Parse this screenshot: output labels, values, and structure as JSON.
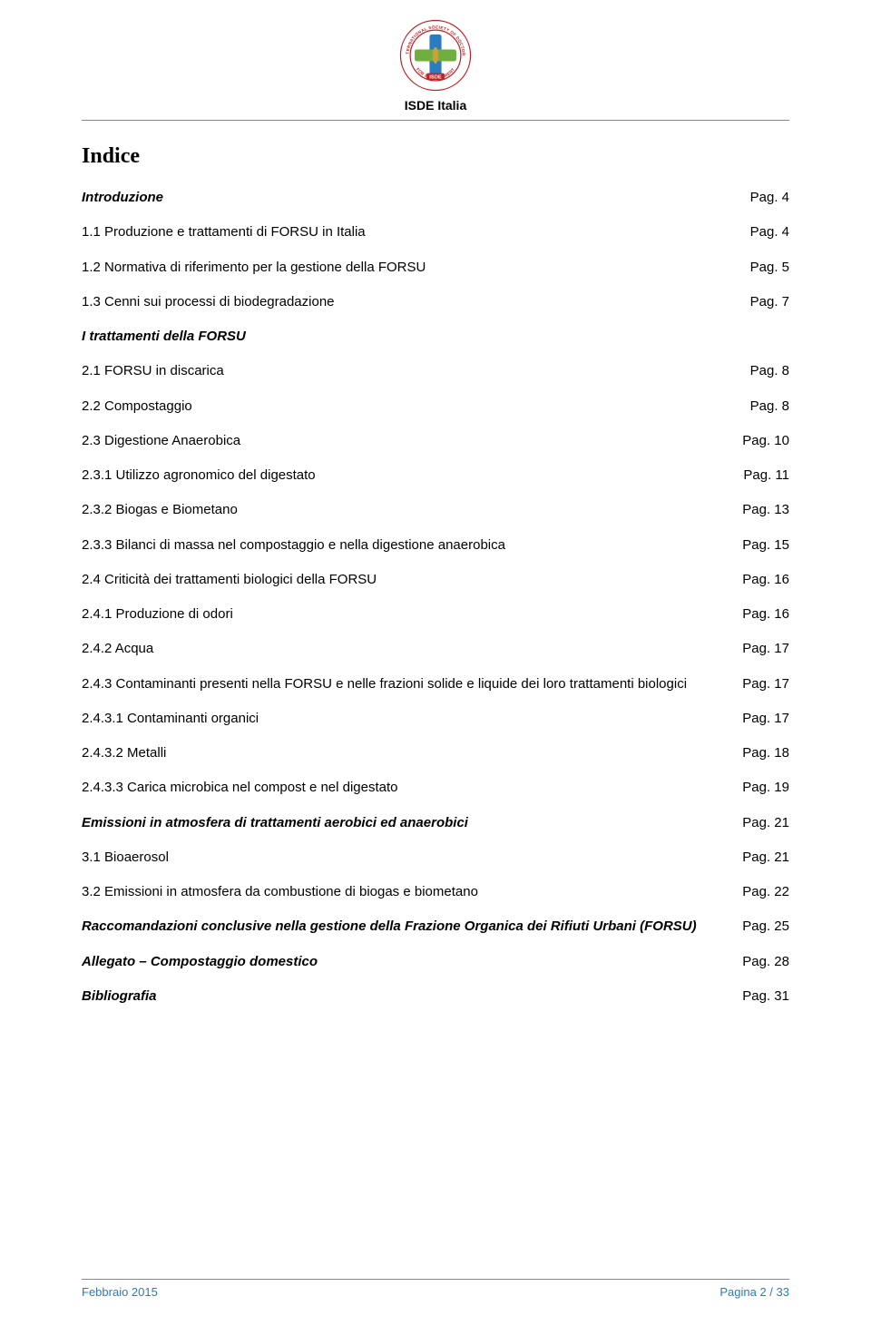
{
  "header": {
    "org_label": "ISDE Italia",
    "logo": {
      "ring_color": "#c02026",
      "cross_v_color": "#2a7bbf",
      "cross_h_color": "#6fae3f",
      "leaf_color": "#c9a23a",
      "ring_text_top": "INTERNATIONAL SOCIETY OF DOCTORS",
      "ring_text_bottom": "FOR ENVIRONMENT",
      "banner_text": "ISDE"
    }
  },
  "title": "Indice",
  "toc": [
    {
      "label": "Introduzione",
      "page": "Pag. 4",
      "bold": true,
      "italic": true
    },
    {
      "label": "1.1 Produzione e trattamenti di FORSU in Italia",
      "page": "Pag. 4"
    },
    {
      "label": "1.2 Normativa di riferimento per la gestione della FORSU",
      "page": "Pag. 5"
    },
    {
      "label": "1.3 Cenni sui processi di biodegradazione",
      "page": "Pag. 7"
    },
    {
      "label": "I trattamenti della FORSU",
      "page": "",
      "bold": true,
      "italic": true
    },
    {
      "label": "2.1 FORSU in discarica",
      "page": "Pag. 8"
    },
    {
      "label": "2.2 Compostaggio",
      "page": "Pag. 8"
    },
    {
      "label": "2.3 Digestione Anaerobica",
      "page": "Pag. 10"
    },
    {
      "label": "2.3.1 Utilizzo agronomico del digestato",
      "page": "Pag. 11"
    },
    {
      "label": "2.3.2 Biogas e Biometano",
      "page": "Pag. 13"
    },
    {
      "label": "2.3.3 Bilanci di massa nel compostaggio e nella digestione anaerobica",
      "page": "Pag. 15"
    },
    {
      "label": "2.4 Criticità dei trattamenti biologici della FORSU",
      "page": "Pag. 16"
    },
    {
      "label": "2.4.1 Produzione di odori",
      "page": "Pag. 16"
    },
    {
      "label": "2.4.2 Acqua",
      "page": "Pag. 17"
    },
    {
      "label": "2.4.3 Contaminanti presenti nella FORSU e nelle frazioni solide e liquide dei loro trattamenti biologici",
      "page": "Pag. 17"
    },
    {
      "label": "2.4.3.1 Contaminanti organici",
      "page": "Pag. 17"
    },
    {
      "label": "2.4.3.2 Metalli",
      "page": "Pag. 18"
    },
    {
      "label": "2.4.3.3 Carica microbica nel compost e nel digestato",
      "page": "Pag. 19"
    },
    {
      "label": "Emissioni in atmosfera di trattamenti aerobici ed anaerobici",
      "page": "Pag. 21",
      "bold": true,
      "italic": true
    },
    {
      "label": "3.1 Bioaerosol",
      "page": "Pag. 21"
    },
    {
      "label": "3.2 Emissioni in atmosfera da combustione di biogas e biometano",
      "page": "Pag. 22"
    },
    {
      "label": "Raccomandazioni conclusive nella gestione della Frazione Organica dei Rifiuti Urbani (FORSU)",
      "page": "Pag. 25",
      "bold": true,
      "italic": true
    },
    {
      "label": "Allegato – Compostaggio domestico",
      "page": "Pag. 28",
      "bold": true,
      "italic": true
    },
    {
      "label": "Bibliografia",
      "page": "Pag. 31",
      "bold": true,
      "italic": true
    }
  ],
  "footer": {
    "left": "Febbraio 2015",
    "right": "Pagina 2 / 33",
    "color": "#2a7bbf"
  }
}
